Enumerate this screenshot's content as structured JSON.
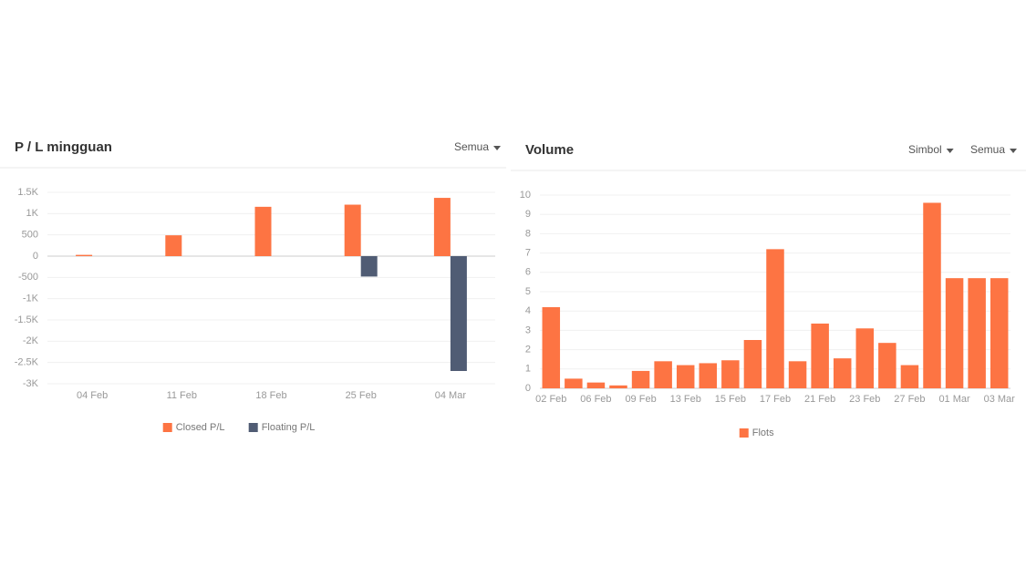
{
  "chart_data": [
    {
      "type": "bar",
      "title": "P / L mingguan",
      "dropdowns": [
        "Semua"
      ],
      "categories": [
        "04 Feb",
        "11 Feb",
        "18 Feb",
        "25 Feb",
        "04 Mar"
      ],
      "series": [
        {
          "name": "Closed P/L",
          "color": "#fd7443",
          "values": [
            30,
            490,
            1160,
            1210,
            1370
          ]
        },
        {
          "name": "Floating P/L",
          "color": "#505c74",
          "values": [
            0,
            0,
            0,
            -480,
            -2700
          ]
        }
      ],
      "ylim": [
        -3000,
        1500
      ],
      "yticks": [
        {
          "value": 1500,
          "label": "1.5K"
        },
        {
          "value": 1000,
          "label": "1K"
        },
        500,
        0,
        -500,
        {
          "value": -1000,
          "label": "-1K"
        },
        {
          "value": -1500,
          "label": "-1.5K"
        },
        {
          "value": -2000,
          "label": "-2K"
        },
        {
          "value": -2500,
          "label": "-2.5K"
        },
        {
          "value": -3000,
          "label": "-3K"
        }
      ],
      "grid": true,
      "legend": "bottom"
    },
    {
      "type": "bar",
      "title": "Volume",
      "dropdowns": [
        "Simbol",
        "Semua"
      ],
      "categories": [
        "02 Feb",
        null,
        "06 Feb",
        null,
        "09 Feb",
        null,
        "13 Feb",
        null,
        "15 Feb",
        null,
        "17 Feb",
        null,
        "21 Feb",
        null,
        "23 Feb",
        null,
        "27 Feb",
        null,
        "01 Mar",
        null,
        "03 Mar"
      ],
      "series": [
        {
          "name": "Flots",
          "color": "#fd7443",
          "values": [
            4.2,
            0.5,
            0.3,
            0.15,
            0.9,
            1.4,
            1.2,
            1.3,
            1.45,
            2.5,
            7.2,
            1.4,
            3.35,
            1.55,
            3.1,
            2.35,
            1.2,
            9.6,
            5.7,
            5.7,
            5.7
          ]
        }
      ],
      "ylim": [
        0,
        10
      ],
      "yticks": [
        0,
        1,
        2,
        3,
        4,
        5,
        6,
        7,
        8,
        9,
        10
      ],
      "grid": true,
      "legend": "bottom"
    }
  ]
}
